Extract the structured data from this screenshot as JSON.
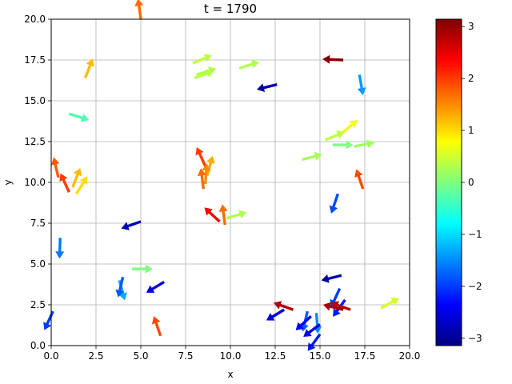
{
  "chart_data": {
    "type": "quiver",
    "title": "t = 1790",
    "xlabel": "x",
    "ylabel": "y",
    "xlim": [
      0,
      20
    ],
    "ylim": [
      0,
      20
    ],
    "xticks": [
      "0.0",
      "2.5",
      "5.0",
      "7.5",
      "10.0",
      "12.5",
      "15.0",
      "17.5",
      "20.0"
    ],
    "yticks": [
      "0.0",
      "2.5",
      "5.0",
      "7.5",
      "10.0",
      "12.5",
      "15.0",
      "17.5",
      "20.0"
    ],
    "grid": true,
    "colormap": "jet",
    "colorbar": {
      "range": [
        -3.1416,
        3.1416
      ],
      "ticks": [
        "3",
        "2",
        "1",
        "0",
        "−1",
        "−2",
        "−3"
      ],
      "tick_values": [
        3,
        2,
        1,
        0,
        -1,
        -2,
        -3
      ]
    },
    "arrows": [
      {
        "x": 5.0,
        "y": 20.0,
        "angle": 1.7
      },
      {
        "x": 7.9,
        "y": 17.3,
        "angle": 0.4
      },
      {
        "x": 8.1,
        "y": 16.6,
        "angle": 0.3
      },
      {
        "x": 8.0,
        "y": 16.4,
        "angle": 0.35
      },
      {
        "x": 10.5,
        "y": 17.0,
        "angle": 0.3
      },
      {
        "x": 12.6,
        "y": 16.0,
        "angle": -2.9
      },
      {
        "x": 16.3,
        "y": 17.5,
        "angle": 3.1
      },
      {
        "x": 17.2,
        "y": 16.6,
        "angle": -1.4
      },
      {
        "x": 1.9,
        "y": 16.4,
        "angle": 1.2
      },
      {
        "x": 1.0,
        "y": 14.2,
        "angle": -0.3
      },
      {
        "x": 16.2,
        "y": 13.0,
        "angle": 0.7
      },
      {
        "x": 15.3,
        "y": 12.6,
        "angle": 0.4
      },
      {
        "x": 15.7,
        "y": 12.3,
        "angle": 0.0
      },
      {
        "x": 16.9,
        "y": 12.2,
        "angle": 0.2
      },
      {
        "x": 14.0,
        "y": 11.4,
        "angle": 0.25
      },
      {
        "x": 8.6,
        "y": 11.0,
        "angle": 2.0
      },
      {
        "x": 8.7,
        "y": 10.4,
        "angle": 1.3
      },
      {
        "x": 8.6,
        "y": 9.9,
        "angle": 1.5
      },
      {
        "x": 8.5,
        "y": 9.6,
        "angle": 1.7
      },
      {
        "x": 0.4,
        "y": 10.3,
        "angle": 1.8
      },
      {
        "x": 1.2,
        "y": 9.7,
        "angle": 1.2
      },
      {
        "x": 1.0,
        "y": 9.4,
        "angle": 2.0
      },
      {
        "x": 1.4,
        "y": 9.3,
        "angle": 1.0
      },
      {
        "x": 16.0,
        "y": 9.3,
        "angle": -1.9
      },
      {
        "x": 17.4,
        "y": 9.6,
        "angle": 1.9
      },
      {
        "x": 9.8,
        "y": 7.8,
        "angle": 0.3
      },
      {
        "x": 9.4,
        "y": 7.6,
        "angle": 2.4
      },
      {
        "x": 9.7,
        "y": 7.4,
        "angle": 1.7
      },
      {
        "x": 5.0,
        "y": 7.6,
        "angle": -2.8
      },
      {
        "x": 0.5,
        "y": 6.6,
        "angle": -1.6
      },
      {
        "x": 4.5,
        "y": 4.7,
        "angle": 0.0
      },
      {
        "x": 3.8,
        "y": 4.0,
        "angle": -1.3
      },
      {
        "x": 4.0,
        "y": 4.2,
        "angle": -1.8
      },
      {
        "x": 6.3,
        "y": 3.9,
        "angle": -2.6
      },
      {
        "x": 16.2,
        "y": 4.3,
        "angle": -2.9
      },
      {
        "x": 16.1,
        "y": 3.5,
        "angle": -2.0
      },
      {
        "x": 16.4,
        "y": 2.8,
        "angle": -2.2
      },
      {
        "x": 13.0,
        "y": 2.2,
        "angle": -2.6
      },
      {
        "x": 13.5,
        "y": 2.2,
        "angle": 2.8
      },
      {
        "x": 14.3,
        "y": 2.1,
        "angle": -1.8
      },
      {
        "x": 14.5,
        "y": 1.8,
        "angle": -2.4
      },
      {
        "x": 14.8,
        "y": 2.0,
        "angle": -1.5
      },
      {
        "x": 16.3,
        "y": 2.2,
        "angle": 2.9
      },
      {
        "x": 16.7,
        "y": 2.2,
        "angle": 2.8
      },
      {
        "x": 18.4,
        "y": 2.3,
        "angle": 0.5
      },
      {
        "x": 15.0,
        "y": 1.3,
        "angle": -2.5
      },
      {
        "x": 15.0,
        "y": 0.7,
        "angle": -2.2
      },
      {
        "x": 6.1,
        "y": 0.6,
        "angle": 1.9
      },
      {
        "x": 0.1,
        "y": 2.1,
        "angle": -2.0
      }
    ]
  }
}
